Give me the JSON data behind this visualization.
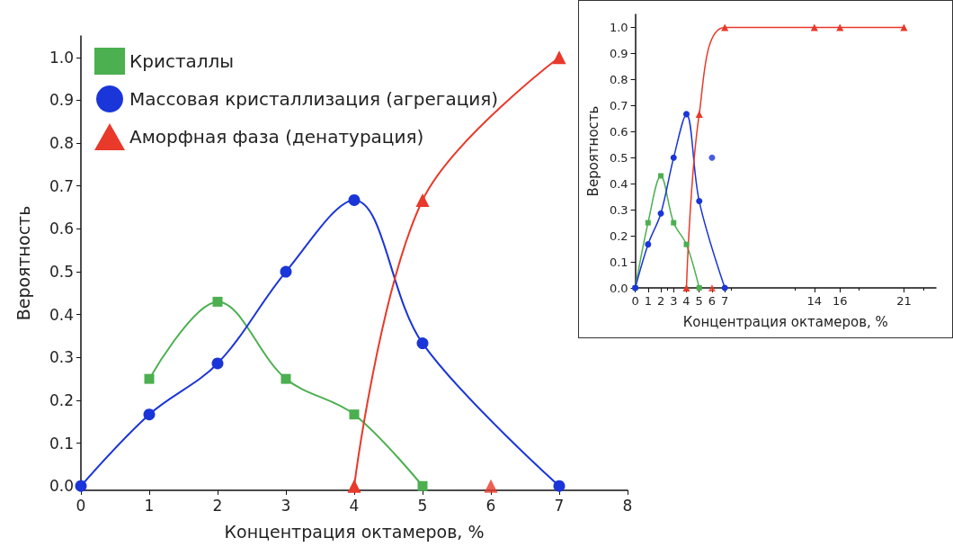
{
  "chart_data": [
    {
      "type": "line",
      "xlabel": "Концентрация октамеров, %",
      "ylabel": "Вероятность",
      "xlim": [
        0,
        8
      ],
      "ylim": [
        -0.01,
        1.05
      ],
      "xticks": [
        0,
        1,
        2,
        3,
        4,
        5,
        6,
        7,
        8
      ],
      "yticks": [
        {
          "value": 0,
          "label": "0.0"
        },
        {
          "value": 0.1,
          "label": "0.1"
        },
        {
          "value": 0.2,
          "label": "0.2"
        },
        {
          "value": 0.3,
          "label": "0.3"
        },
        {
          "value": 0.4,
          "label": "0.4"
        },
        {
          "value": 0.5,
          "label": "0.5"
        },
        {
          "value": 0.6,
          "label": "0.6"
        },
        {
          "value": 0.7,
          "label": "0.7"
        },
        {
          "value": 0.8,
          "label": "0.8"
        },
        {
          "value": 0.9,
          "label": "0.9"
        },
        {
          "value": 1,
          "label": "1.0"
        }
      ],
      "grid": false,
      "legend": "top left",
      "series": [
        {
          "name": "Кристаллы",
          "color": "#4caf50",
          "marker": "square",
          "x": [
            1,
            2,
            3,
            4,
            5
          ],
          "values": [
            0.25,
            0.43,
            0.25,
            0.167,
            0
          ]
        },
        {
          "name": "Массовая кристаллизация (агрегация)",
          "color": "#1a35d8",
          "marker": "circle",
          "x": [
            0,
            1,
            2,
            3,
            4,
            5,
            7
          ],
          "values": [
            0,
            0.167,
            0.286,
            0.5,
            0.667,
            0.333,
            0
          ]
        },
        {
          "name": "Аморфная фаза (денатурация)",
          "color": "#e8392a",
          "marker": "triangle",
          "x": [
            4,
            5,
            7
          ],
          "values": [
            0,
            0.667,
            1
          ]
        },
        {
          "type": "scatter",
          "color": "#e8392a",
          "marker": "triangle",
          "x": [
            6
          ],
          "values": [
            0
          ]
        }
      ]
    },
    {
      "type": "line",
      "xlabel": "Концентрация октамеров, %",
      "ylabel": "Вероятность",
      "xlim": [
        0,
        23.5
      ],
      "ylim": [
        0,
        1.05
      ],
      "xticks": [
        0,
        1,
        2,
        3,
        4,
        5,
        6,
        7,
        14,
        16,
        21
      ],
      "yticks": [
        {
          "value": 0,
          "label": "0.0"
        },
        {
          "value": 0.1,
          "label": "0.1"
        },
        {
          "value": 0.2,
          "label": "0.2"
        },
        {
          "value": 0.3,
          "label": "0.3"
        },
        {
          "value": 0.4,
          "label": "0.4"
        },
        {
          "value": 0.5,
          "label": "0.5"
        },
        {
          "value": 0.6,
          "label": "0.6"
        },
        {
          "value": 0.7,
          "label": "0.7"
        },
        {
          "value": 0.8,
          "label": "0.8"
        },
        {
          "value": 0.9,
          "label": "0.9"
        },
        {
          "value": 1,
          "label": "1.0"
        }
      ],
      "grid": false,
      "series": [
        {
          "color": "#4caf50",
          "marker": "square",
          "x": [
            0,
            1,
            2,
            3,
            4,
            5
          ],
          "values": [
            0,
            0.25,
            0.43,
            0.25,
            0.167,
            0
          ]
        },
        {
          "color": "#1a35d8",
          "marker": "circle",
          "x": [
            0,
            1,
            2,
            3,
            4,
            5,
            7
          ],
          "values": [
            0,
            0.167,
            0.286,
            0.5,
            0.667,
            0.333,
            0
          ]
        },
        {
          "color": "#e8392a",
          "marker": "triangle",
          "x": [
            4,
            5,
            7,
            14,
            16,
            21
          ],
          "values": [
            0,
            0.667,
            1,
            1,
            1,
            1
          ]
        },
        {
          "type": "scatter",
          "color": "#1a35d8",
          "marker": "circle",
          "x": [
            6
          ],
          "values": [
            0.5
          ]
        },
        {
          "type": "scatter",
          "color": "#e8392a",
          "marker": "triangle",
          "x": [
            6
          ],
          "values": [
            0
          ]
        }
      ]
    }
  ]
}
